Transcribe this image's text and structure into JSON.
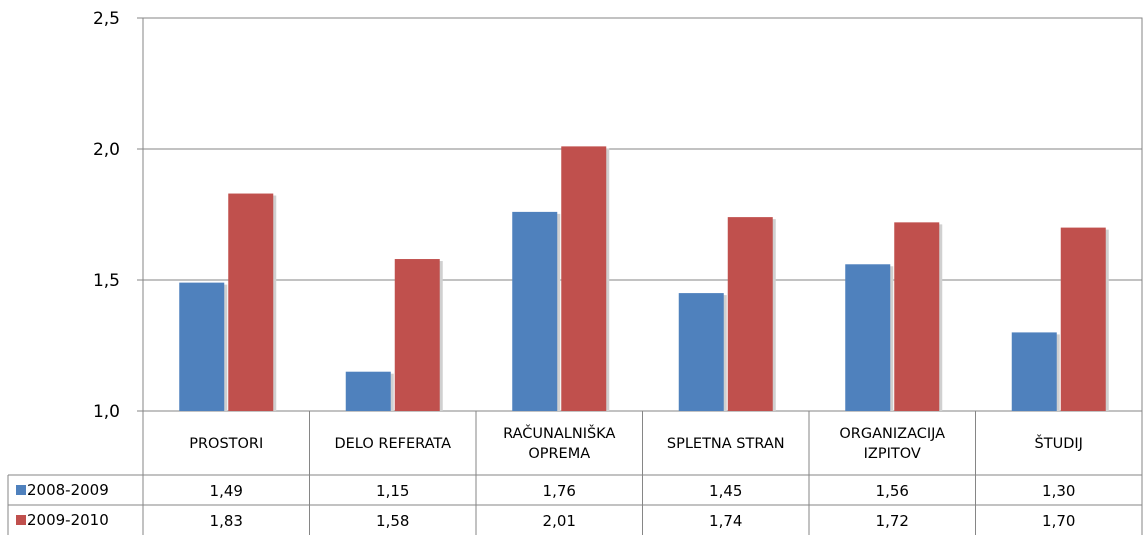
{
  "chart_data": {
    "type": "bar",
    "categories": [
      [
        "PROSTORI"
      ],
      [
        "DELO REFERATA"
      ],
      [
        "RAČUNALNIŠKA",
        "OPREMA"
      ],
      [
        "SPLETNA STRAN"
      ],
      [
        "ORGANIZACIJA",
        "IZPITOV"
      ],
      [
        "ŠTUDIJ"
      ]
    ],
    "series": [
      {
        "name": "2008-2009",
        "color": "#4f81bd",
        "values": [
          1.49,
          1.15,
          1.76,
          1.45,
          1.56,
          1.3
        ]
      },
      {
        "name": "2009-2010",
        "color": "#c0504d",
        "values": [
          1.83,
          1.58,
          2.01,
          1.74,
          1.72,
          1.7
        ]
      }
    ],
    "ylim": [
      1.0,
      2.5
    ],
    "yticks": [
      "1,0",
      "1,5",
      "2,0",
      "2,5"
    ],
    "ytick_values": [
      1.0,
      1.5,
      2.0,
      2.5
    ],
    "data_table": true,
    "legend": "data-table-left"
  }
}
